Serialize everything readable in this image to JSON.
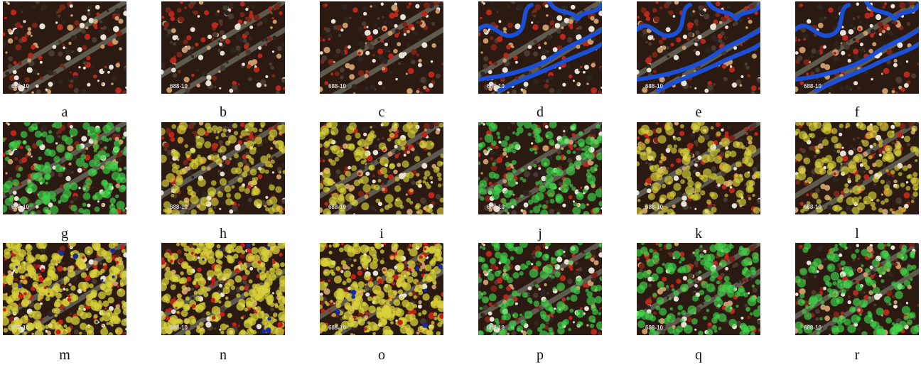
{
  "panels": [
    {
      "label": "a",
      "watermark": "688-10",
      "overlay": "none"
    },
    {
      "label": "b",
      "watermark": "688-10",
      "overlay": "none"
    },
    {
      "label": "c",
      "watermark": "688-10",
      "overlay": "none"
    },
    {
      "label": "d",
      "watermark": "688-10",
      "overlay": "blue-contour"
    },
    {
      "label": "e",
      "watermark": "688-10",
      "overlay": "blue-contour"
    },
    {
      "label": "f",
      "watermark": "688-10",
      "overlay": "blue-contour"
    },
    {
      "label": "g",
      "watermark": "688-10",
      "overlay": "green"
    },
    {
      "label": "h",
      "watermark": "688-10",
      "overlay": "yellow-light"
    },
    {
      "label": "i",
      "watermark": "688-10",
      "overlay": "yellow-light"
    },
    {
      "label": "j",
      "watermark": "688-10",
      "overlay": "green"
    },
    {
      "label": "k",
      "watermark": "688-10",
      "overlay": "yellow-light"
    },
    {
      "label": "l",
      "watermark": "688-10",
      "overlay": "yellow-light"
    },
    {
      "label": "m",
      "watermark": "688-10",
      "overlay": "yellow-heavy"
    },
    {
      "label": "n",
      "watermark": "688-10",
      "overlay": "yellow-heavy"
    },
    {
      "label": "o",
      "watermark": "688-10",
      "overlay": "yellow-heavy"
    },
    {
      "label": "p",
      "watermark": "688-10",
      "overlay": "green"
    },
    {
      "label": "q",
      "watermark": "688-10",
      "overlay": "green"
    },
    {
      "label": "r",
      "watermark": "688-10",
      "overlay": "green"
    }
  ],
  "colors": {
    "background": "#2a1a12",
    "stripe": "#6b6a5e",
    "crowd_red": "#b8281c",
    "crowd_white": "#e8e2d6",
    "overlay_green": "#3fd64a",
    "overlay_yellow": "#d8d23a",
    "contour_blue": "#1a4fd6"
  }
}
